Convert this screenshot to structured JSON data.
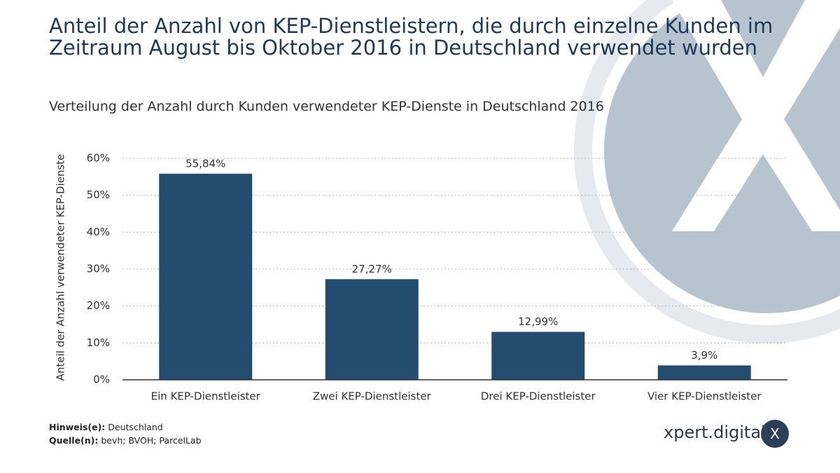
{
  "chart_data": {
    "type": "bar",
    "title": "Anteil der Anzahl von KEP-Dienstleistern, die durch einzelne Kunden im Zeitraum August bis Oktober 2016 in Deutschland verwendet wurden",
    "subtitle": "Verteilung der Anzahl durch Kunden verwendeter KEP-Dienste in Deutschland 2016",
    "y_label": "Anteil der Anzahl verwendeter KEP-Dienste",
    "categories": [
      "Ein KEP-Dienstleister",
      "Zwei KEP-Dienstleister",
      "Drei KEP-Dienstleister",
      "Vier KEP-Dienstleister"
    ],
    "values": [
      55.84,
      27.27,
      12.99,
      3.9
    ],
    "value_labels": [
      "55,84%",
      "27,27%",
      "12,99%",
      "3,9%"
    ],
    "color": "#234c6e",
    "ylim": [
      0,
      60
    ],
    "yticks": [
      {
        "value": 0,
        "label": "0%"
      },
      {
        "value": 10,
        "label": "10%"
      },
      {
        "value": 20,
        "label": "20%"
      },
      {
        "value": 30,
        "label": "30%"
      },
      {
        "value": 40,
        "label": "40%"
      },
      {
        "value": 50,
        "label": "50%"
      },
      {
        "value": 60,
        "label": "60%"
      }
    ],
    "grid": true,
    "notes": [
      {
        "label": "Hinweis(e):",
        "text": "Deutschland"
      },
      {
        "label": "Quelle(n):",
        "text": "bevh; BVOH; ParcelLab"
      }
    ],
    "logo": "xpert.digital",
    "logo_mark": "X"
  }
}
